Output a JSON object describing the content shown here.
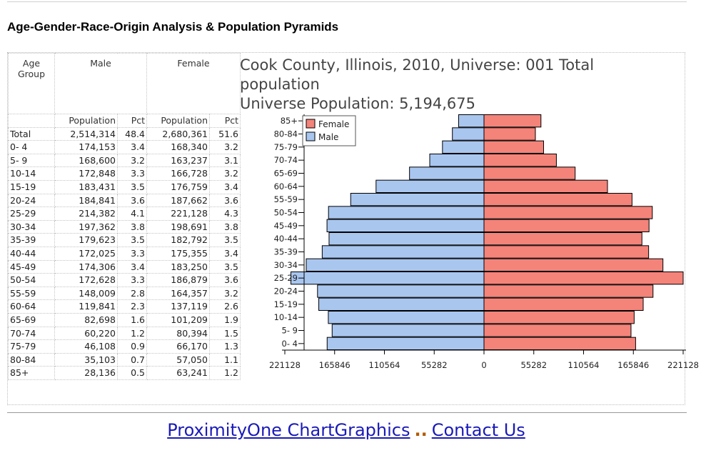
{
  "page": {
    "heading": "Age-Gender-Race-Origin Analysis & Population Pyramids"
  },
  "table": {
    "group_headers": [
      "Age Group",
      "Male",
      "Female"
    ],
    "sub_headers": [
      "Population",
      "Pct",
      "Population",
      "Pct"
    ],
    "rows": [
      {
        "age": "Total",
        "male_pop": "2,514,314",
        "male_pct": "48.4",
        "female_pop": "2,680,361",
        "female_pct": "51.6"
      },
      {
        "age": "0- 4",
        "male_pop": "174,153",
        "male_pct": "3.4",
        "female_pop": "168,340",
        "female_pct": "3.2"
      },
      {
        "age": "5- 9",
        "male_pop": "168,600",
        "male_pct": "3.2",
        "female_pop": "163,237",
        "female_pct": "3.1"
      },
      {
        "age": "10-14",
        "male_pop": "172,848",
        "male_pct": "3.3",
        "female_pop": "166,728",
        "female_pct": "3.2"
      },
      {
        "age": "15-19",
        "male_pop": "183,431",
        "male_pct": "3.5",
        "female_pop": "176,759",
        "female_pct": "3.4"
      },
      {
        "age": "20-24",
        "male_pop": "184,841",
        "male_pct": "3.6",
        "female_pop": "187,662",
        "female_pct": "3.6"
      },
      {
        "age": "25-29",
        "male_pop": "214,382",
        "male_pct": "4.1",
        "female_pop": "221,128",
        "female_pct": "4.3"
      },
      {
        "age": "30-34",
        "male_pop": "197,362",
        "male_pct": "3.8",
        "female_pop": "198,691",
        "female_pct": "3.8"
      },
      {
        "age": "35-39",
        "male_pop": "179,623",
        "male_pct": "3.5",
        "female_pop": "182,792",
        "female_pct": "3.5"
      },
      {
        "age": "40-44",
        "male_pop": "172,025",
        "male_pct": "3.3",
        "female_pop": "175,355",
        "female_pct": "3.4"
      },
      {
        "age": "45-49",
        "male_pop": "174,306",
        "male_pct": "3.4",
        "female_pop": "183,250",
        "female_pct": "3.5"
      },
      {
        "age": "50-54",
        "male_pop": "172,628",
        "male_pct": "3.3",
        "female_pop": "186,879",
        "female_pct": "3.6"
      },
      {
        "age": "55-59",
        "male_pop": "148,009",
        "male_pct": "2.8",
        "female_pop": "164,357",
        "female_pct": "3.2"
      },
      {
        "age": "60-64",
        "male_pop": "119,841",
        "male_pct": "2.3",
        "female_pop": "137,119",
        "female_pct": "2.6"
      },
      {
        "age": "65-69",
        "male_pop": "82,698",
        "male_pct": "1.6",
        "female_pop": "101,209",
        "female_pct": "1.9"
      },
      {
        "age": "70-74",
        "male_pop": "60,220",
        "male_pct": "1.2",
        "female_pop": "80,394",
        "female_pct": "1.5"
      },
      {
        "age": "75-79",
        "male_pop": "46,108",
        "male_pct": "0.9",
        "female_pop": "66,170",
        "female_pct": "1.3"
      },
      {
        "age": "80-84",
        "male_pop": "35,103",
        "male_pct": "0.7",
        "female_pop": "57,050",
        "female_pct": "1.1"
      },
      {
        "age": "85+",
        "male_pop": "28,136",
        "male_pct": "0.5",
        "female_pop": "63,241",
        "female_pct": "1.2"
      }
    ]
  },
  "chart_title": {
    "line1": "Cook County, Illinois, 2010, Universe: 001 Total",
    "line2": "population",
    "line3": "Universe Population: 5,194,675"
  },
  "colors": {
    "male": "#a9c6ef",
    "female": "#f4837a",
    "bar_outline": "#000000",
    "link": "#1a1ab8"
  },
  "chart_data": {
    "type": "bar",
    "orientation": "horizontal-pyramid",
    "categories": [
      "0- 4",
      "5- 9",
      "10-14",
      "15-19",
      "20-24",
      "25-29",
      "30-34",
      "35-39",
      "40-44",
      "45-49",
      "50-54",
      "55-59",
      "60-64",
      "65-69",
      "70-74",
      "75-79",
      "80-84",
      "85+"
    ],
    "series": [
      {
        "name": "Female",
        "values": [
          168340,
          163237,
          166728,
          176759,
          187662,
          221128,
          198691,
          182792,
          175355,
          183250,
          186879,
          164357,
          137119,
          101209,
          80394,
          66170,
          57050,
          63241
        ]
      },
      {
        "name": "Male",
        "values": [
          174153,
          168600,
          172848,
          183431,
          184841,
          214382,
          197362,
          179623,
          172025,
          174306,
          172628,
          148009,
          119841,
          82698,
          60220,
          46108,
          35103,
          28136
        ]
      }
    ],
    "xlim": [
      -221128,
      221128
    ],
    "x_ticks": [
      -221128,
      -165846,
      -110564,
      -55282,
      0,
      55282,
      110564,
      165846,
      221128
    ],
    "x_tick_labels": [
      "221128",
      "165846",
      "110564",
      "55282",
      "0",
      "55282",
      "110564",
      "165846",
      "221128"
    ],
    "legend": [
      "Female",
      "Male"
    ],
    "legend_position": "top-left"
  },
  "footer": {
    "link1": "ProximityOne ChartGraphics",
    "separator": "..",
    "link2": "Contact Us"
  }
}
